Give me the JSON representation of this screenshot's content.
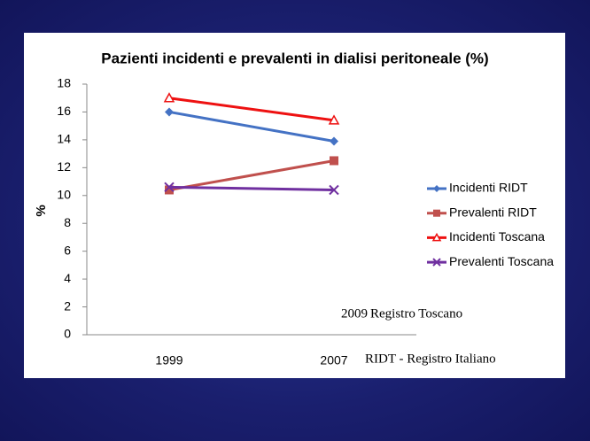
{
  "chart_data": {
    "type": "line",
    "title": "Pazienti incidenti e prevalenti in dialisi peritoneale  (%)",
    "y_label": "%",
    "categories": [
      "1999",
      "2007"
    ],
    "series": [
      {
        "name": "Incidenti RIDT",
        "color": "#4472c4",
        "marker": "diamond",
        "values": [
          16,
          13.9
        ]
      },
      {
        "name": "Prevalenti RIDT",
        "color": "#c0504d",
        "marker": "square",
        "values": [
          10.4,
          12.5
        ]
      },
      {
        "name": "Incidenti Toscana",
        "color": "#ee1111",
        "marker": "triangle",
        "values": [
          17,
          15.4
        ]
      },
      {
        "name": "Prevalenti Toscana",
        "color": "#7030a0",
        "marker": "x",
        "values": [
          10.6,
          10.4
        ]
      }
    ],
    "ylim": [
      0,
      18
    ],
    "yticks": [
      0,
      2,
      4,
      6,
      8,
      10,
      12,
      14,
      16,
      18
    ],
    "grid": false,
    "legend": "right",
    "annotations": [
      "2009",
      "Registro Toscano",
      "RIDT - Registro Italiano"
    ]
  }
}
